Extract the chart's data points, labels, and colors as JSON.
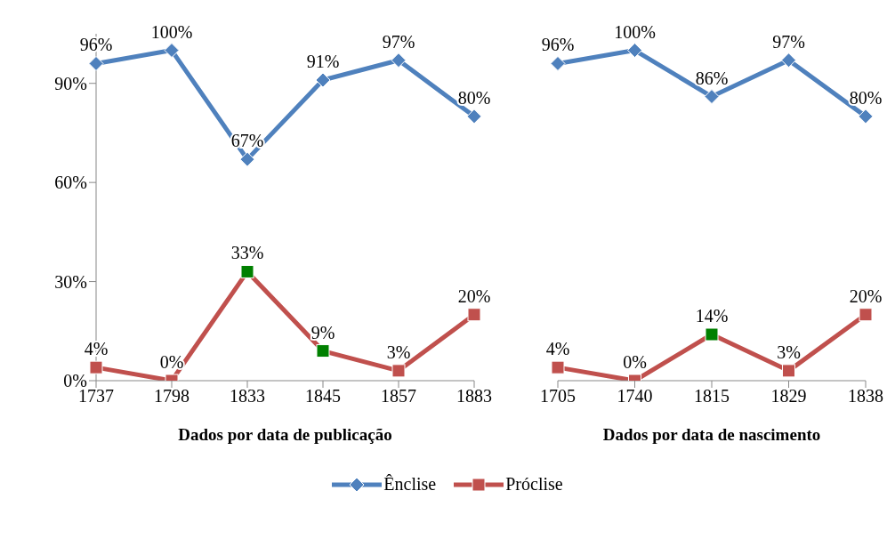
{
  "chart_data": [
    {
      "type": "line",
      "xlabel": "Dados por data de publicação",
      "categories": [
        "1737",
        "1798",
        "1833",
        "1845",
        "1857",
        "1883"
      ],
      "ylim": [
        0,
        105
      ],
      "yticks": [
        {
          "value": 0,
          "label": "0%"
        },
        {
          "value": 30,
          "label": "30%"
        },
        {
          "value": 60,
          "label": "60%"
        },
        {
          "value": 90,
          "label": "90%"
        }
      ],
      "legend": "bottom",
      "series": [
        {
          "name": "Ênclise",
          "color": "#4f81bd",
          "marker": "diamond",
          "values": [
            96,
            100,
            67,
            91,
            97,
            80
          ],
          "value_labels": [
            "96%",
            "100%",
            "67%",
            "91%",
            "97%",
            "80%"
          ]
        },
        {
          "name": "Próclise",
          "color": "#c0504d",
          "marker": "square",
          "values": [
            4,
            0,
            33,
            9,
            3,
            20
          ],
          "colors": [
            "#c0504d",
            "#c0504d",
            "#008000",
            "#008000",
            "#c0504d",
            "#c0504d"
          ],
          "value_labels": [
            "4%",
            "0%",
            "33%",
            "9%",
            "3%",
            "20%"
          ]
        }
      ]
    },
    {
      "type": "line",
      "xlabel": "Dados por data de nascimento",
      "categories": [
        "1705",
        "1740",
        "1815",
        "1829",
        "1838"
      ],
      "tick_labels": "x",
      "series": [
        {
          "color": "#4f81bd",
          "marker": "diamond",
          "values": [
            96,
            100,
            86,
            97,
            80
          ],
          "value_labels": [
            "96%",
            "100%",
            "86%",
            "97%",
            "80%"
          ]
        },
        {
          "color": "#c0504d",
          "marker": "square",
          "values": [
            4,
            0,
            14,
            3,
            20
          ],
          "colors": [
            "#c0504d",
            "#c0504d",
            "#008000",
            "#c0504d",
            "#c0504d"
          ],
          "value_labels": [
            "4%",
            "0%",
            "14%",
            "3%",
            "20%"
          ]
        }
      ]
    }
  ]
}
